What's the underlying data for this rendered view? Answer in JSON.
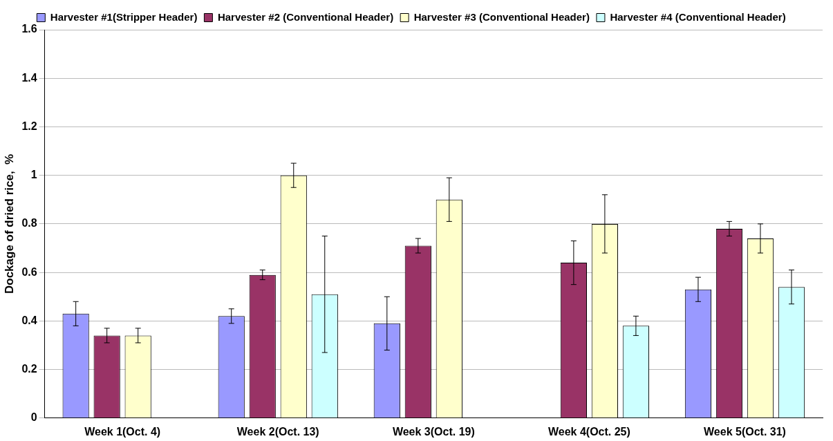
{
  "chart_data": {
    "type": "bar",
    "ylabel": "Dockage of dried rice,  %",
    "categories": [
      "Week 1(Oct. 4)",
      "Week 2(Oct. 13)",
      "Week 3(Oct. 19)",
      "Week 4(Oct. 25)",
      "Week 5(Oct. 31)"
    ],
    "series": [
      {
        "name": "Harvester #1(Stripper Header)",
        "color": "#9999ff",
        "values": [
          0.43,
          0.42,
          0.39,
          null,
          0.53
        ],
        "errors": [
          0.05,
          0.03,
          0.11,
          null,
          0.05
        ]
      },
      {
        "name": "Harvester #2 (Conventional Header)",
        "color": "#993366",
        "values": [
          0.34,
          0.59,
          0.71,
          0.64,
          0.78
        ],
        "errors": [
          0.03,
          0.02,
          0.03,
          0.09,
          0.03
        ]
      },
      {
        "name": "Harvester #3 (Conventional Header)",
        "color": "#ffffcc",
        "values": [
          0.34,
          1.0,
          0.9,
          0.8,
          0.74
        ],
        "errors": [
          0.03,
          0.05,
          0.09,
          0.12,
          0.06
        ]
      },
      {
        "name": "Harvester #4 (Conventional Header)",
        "color": "#ccffff",
        "values": [
          null,
          0.51,
          null,
          0.38,
          0.54
        ],
        "errors": [
          null,
          0.24,
          null,
          0.04,
          0.07
        ]
      }
    ],
    "ylim": [
      0,
      1.6
    ],
    "yticks": [
      0,
      0.2,
      0.4,
      0.6,
      0.8,
      1,
      1.2,
      1.4,
      1.6
    ],
    "grid": "y",
    "legend": "top"
  }
}
